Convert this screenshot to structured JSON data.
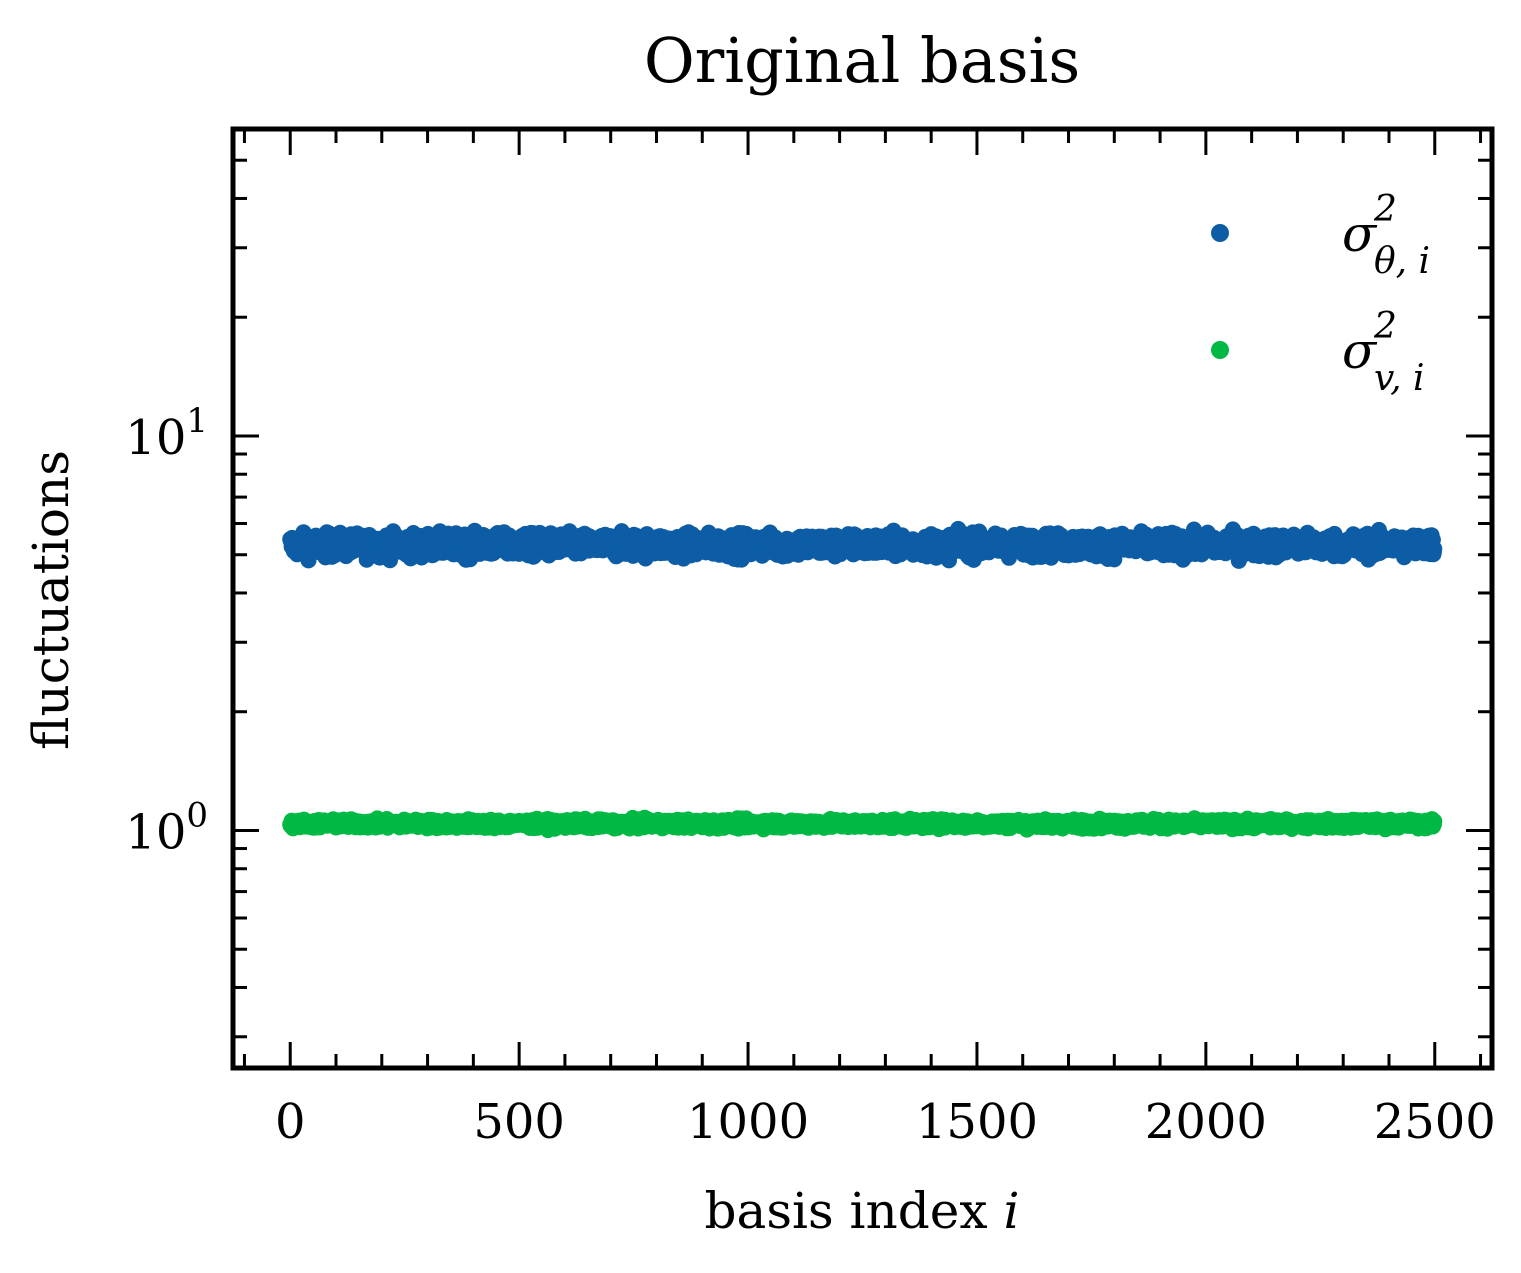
{
  "chart_data": {
    "type": "scatter",
    "title": "Original basis",
    "xlabel": "basis index",
    "xlabel_var": "i",
    "ylabel": "fluctuations",
    "xlim": [
      -125,
      2625
    ],
    "ylim": [
      0.25,
      60
    ],
    "yscale": "log",
    "x_ticks": [
      0,
      500,
      1000,
      1500,
      2000,
      2500
    ],
    "y_ticks": [
      {
        "base": "10",
        "exp": "0",
        "value": 1
      },
      {
        "base": "10",
        "exp": "1",
        "value": 10
      }
    ],
    "grid": false,
    "legend_position": "top-right",
    "n_points": 2500,
    "series": [
      {
        "name": "σ²θ,i",
        "legend": {
          "symbol": "σ",
          "sup": "2",
          "sub": "θ, i"
        },
        "color": "#0C5DA5",
        "center": 5.3,
        "spread": 0.35,
        "min": 4.6,
        "max": 6.2
      },
      {
        "name": "σ²v,i",
        "legend": {
          "symbol": "σ",
          "sup": "2",
          "sub": "v, i"
        },
        "color": "#00B945",
        "center": 1.04,
        "spread": 0.025,
        "min": 0.99,
        "max": 1.09
      }
    ]
  }
}
